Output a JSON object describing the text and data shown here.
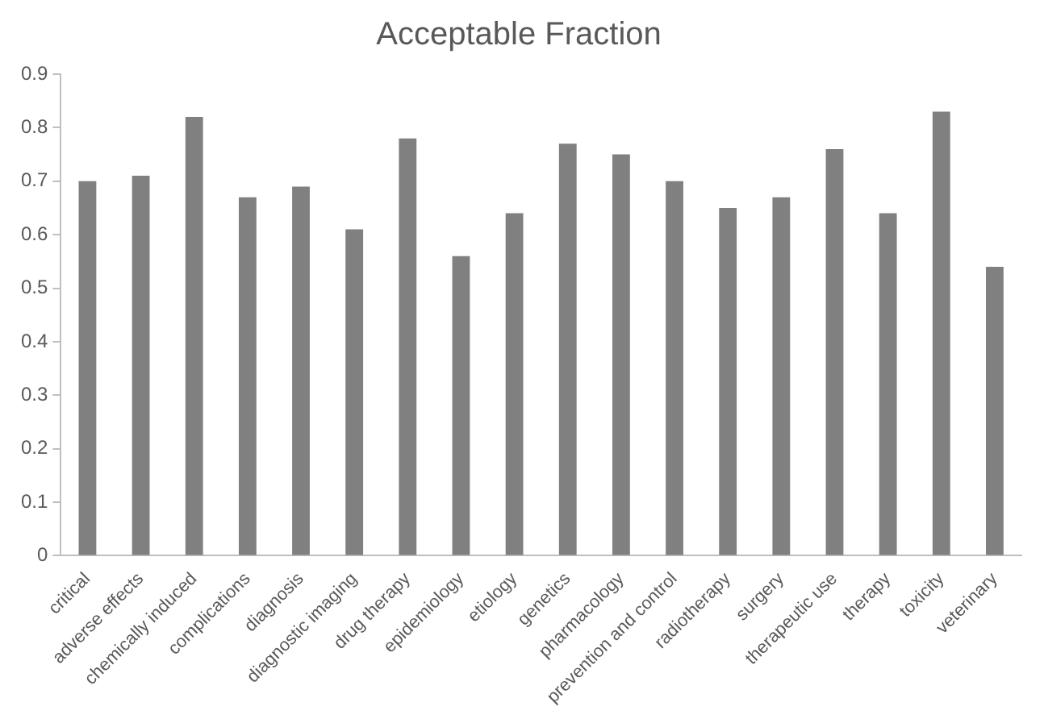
{
  "chart_data": {
    "type": "bar",
    "title": "Acceptable Fraction",
    "categories": [
      "critical",
      "adverse effects",
      "chemically induced",
      "complications",
      "diagnosis",
      "diagnostic imaging",
      "drug therapy",
      "epidemiology",
      "etiology",
      "genetics",
      "pharmacology",
      "prevention and control",
      "radiotherapy",
      "surgery",
      "therapeutic use",
      "therapy",
      "toxicity",
      "veterinary"
    ],
    "values": [
      0.7,
      0.71,
      0.82,
      0.67,
      0.69,
      0.61,
      0.78,
      0.56,
      0.64,
      0.77,
      0.75,
      0.7,
      0.65,
      0.67,
      0.76,
      0.64,
      0.83,
      0.54
    ],
    "color": "#808080",
    "ylim": [
      0,
      0.9
    ],
    "yticks": [
      0,
      0.1,
      0.2,
      0.3,
      0.4,
      0.5,
      0.6,
      0.7,
      0.8,
      0.9
    ],
    "grid": false,
    "legend": false
  }
}
